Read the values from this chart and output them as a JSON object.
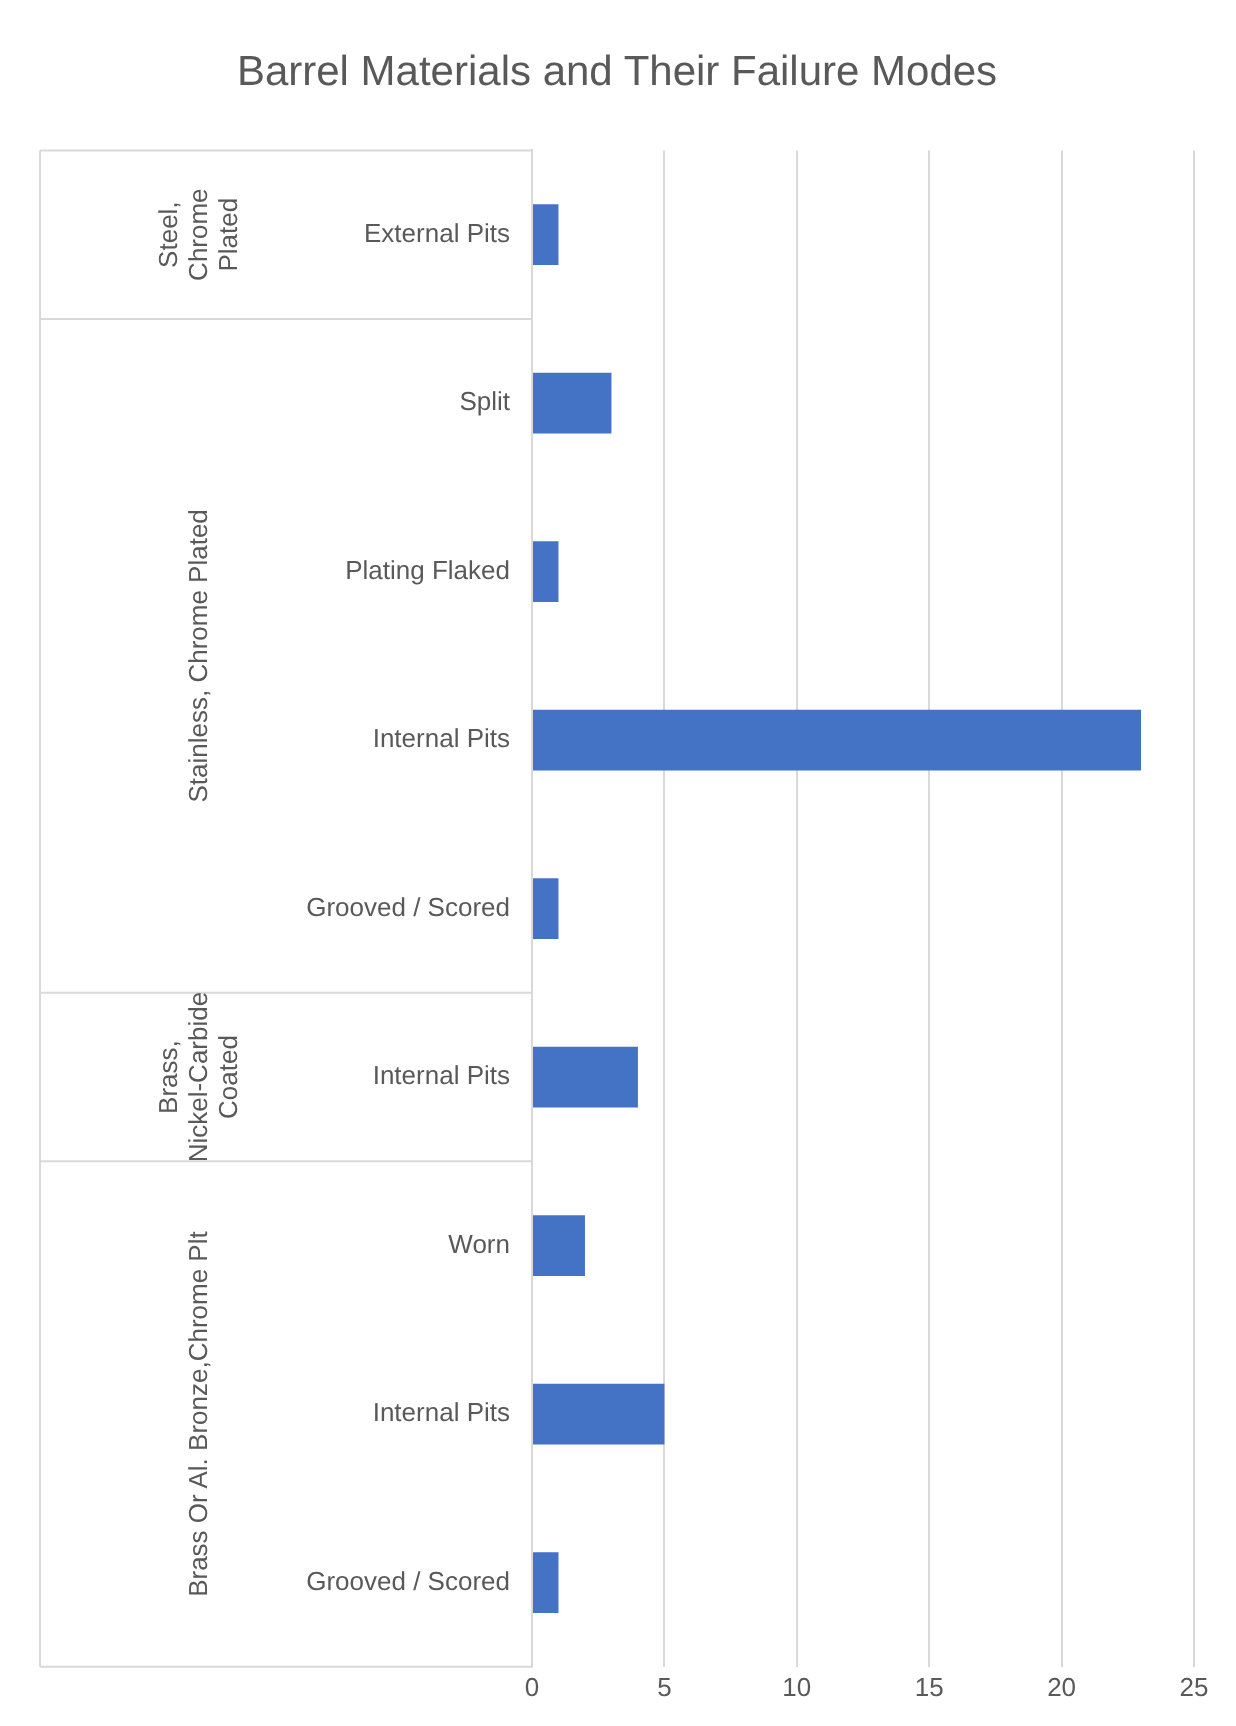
{
  "chart_data": {
    "type": "bar",
    "orientation": "horizontal",
    "title": "Barrel Materials and Their Failure Modes",
    "categories": [
      "External Pits",
      "Split",
      "Plating Flaked",
      "Internal Pits",
      "Grooved / Scored",
      "Internal Pits",
      "Worn",
      "Internal Pits",
      "Grooved / Scored"
    ],
    "values": [
      1,
      3,
      1,
      23,
      1,
      4,
      2,
      5,
      1
    ],
    "color": "#4472c4",
    "xlim": [
      0,
      25
    ],
    "xticks": [
      0,
      5,
      10,
      15,
      20,
      25
    ],
    "grid": "x",
    "legend": false,
    "annotations": [
      "Steel, Chrome Plated",
      "Stainless, Chrome Plated",
      "Brass, Nickel-Carbide Coated",
      "Brass Or Al. Bronze,Chrome Plt"
    ]
  }
}
